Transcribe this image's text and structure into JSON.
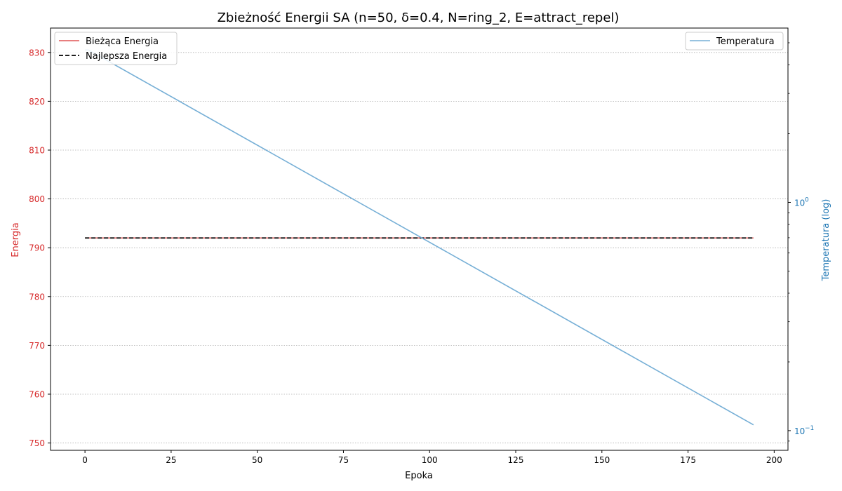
{
  "chart_data": {
    "type": "line",
    "title": "Zbieżność Energii SA (n=50, δ=0.4, N=ring_2, E=attract_repel)",
    "xlabel": "Epoka",
    "ylabel_left": "Energia",
    "ylabel_right": "Temperatura (log)",
    "xlim": [
      -10,
      204
    ],
    "ylim_left": [
      748.5,
      835
    ],
    "ylim_right_log": [
      0.082,
      5.8
    ],
    "x_ticks": [
      0,
      25,
      50,
      75,
      100,
      125,
      150,
      175,
      200
    ],
    "x_tick_labels": [
      "0",
      "25",
      "50",
      "75",
      "100",
      "125",
      "150",
      "175",
      "200"
    ],
    "y_left_ticks": [
      750,
      760,
      770,
      780,
      790,
      800,
      810,
      820,
      830
    ],
    "y_left_tick_labels": [
      "750",
      "760",
      "770",
      "780",
      "790",
      "800",
      "810",
      "820",
      "830"
    ],
    "y_right_major_ticks": [
      {
        "value": 0.1,
        "base": "10",
        "exp": "−1"
      },
      {
        "value": 1,
        "base": "10",
        "exp": "0"
      }
    ],
    "grid": "horizontal-dotted",
    "colors": {
      "energy_axis": "#d62728",
      "temperature_axis": "#1f77b4",
      "current_energy": "#e05555",
      "best_energy": "#000000",
      "temperature": "#76afd6",
      "grid": "#b0b0b0"
    },
    "legend_left": {
      "placement": "top-left",
      "entries": [
        "Bieżąca Energia",
        "Najlepsza Energia"
      ]
    },
    "legend_right": {
      "placement": "top-right",
      "entries": [
        "Temperatura"
      ]
    },
    "series": [
      {
        "name": "Bieżąca Energia",
        "axis": "left",
        "style": "solid",
        "x": [
          0,
          194
        ],
        "values": [
          792,
          792
        ]
      },
      {
        "name": "Najlepsza Energia",
        "axis": "left",
        "style": "dashed",
        "x": [
          0,
          194
        ],
        "values": [
          792,
          792
        ]
      },
      {
        "name": "Temperatura",
        "axis": "right",
        "style": "solid",
        "scale": "log",
        "x": [
          0,
          1,
          194
        ],
        "values": [
          4.65,
          4.65,
          0.106
        ]
      }
    ]
  }
}
